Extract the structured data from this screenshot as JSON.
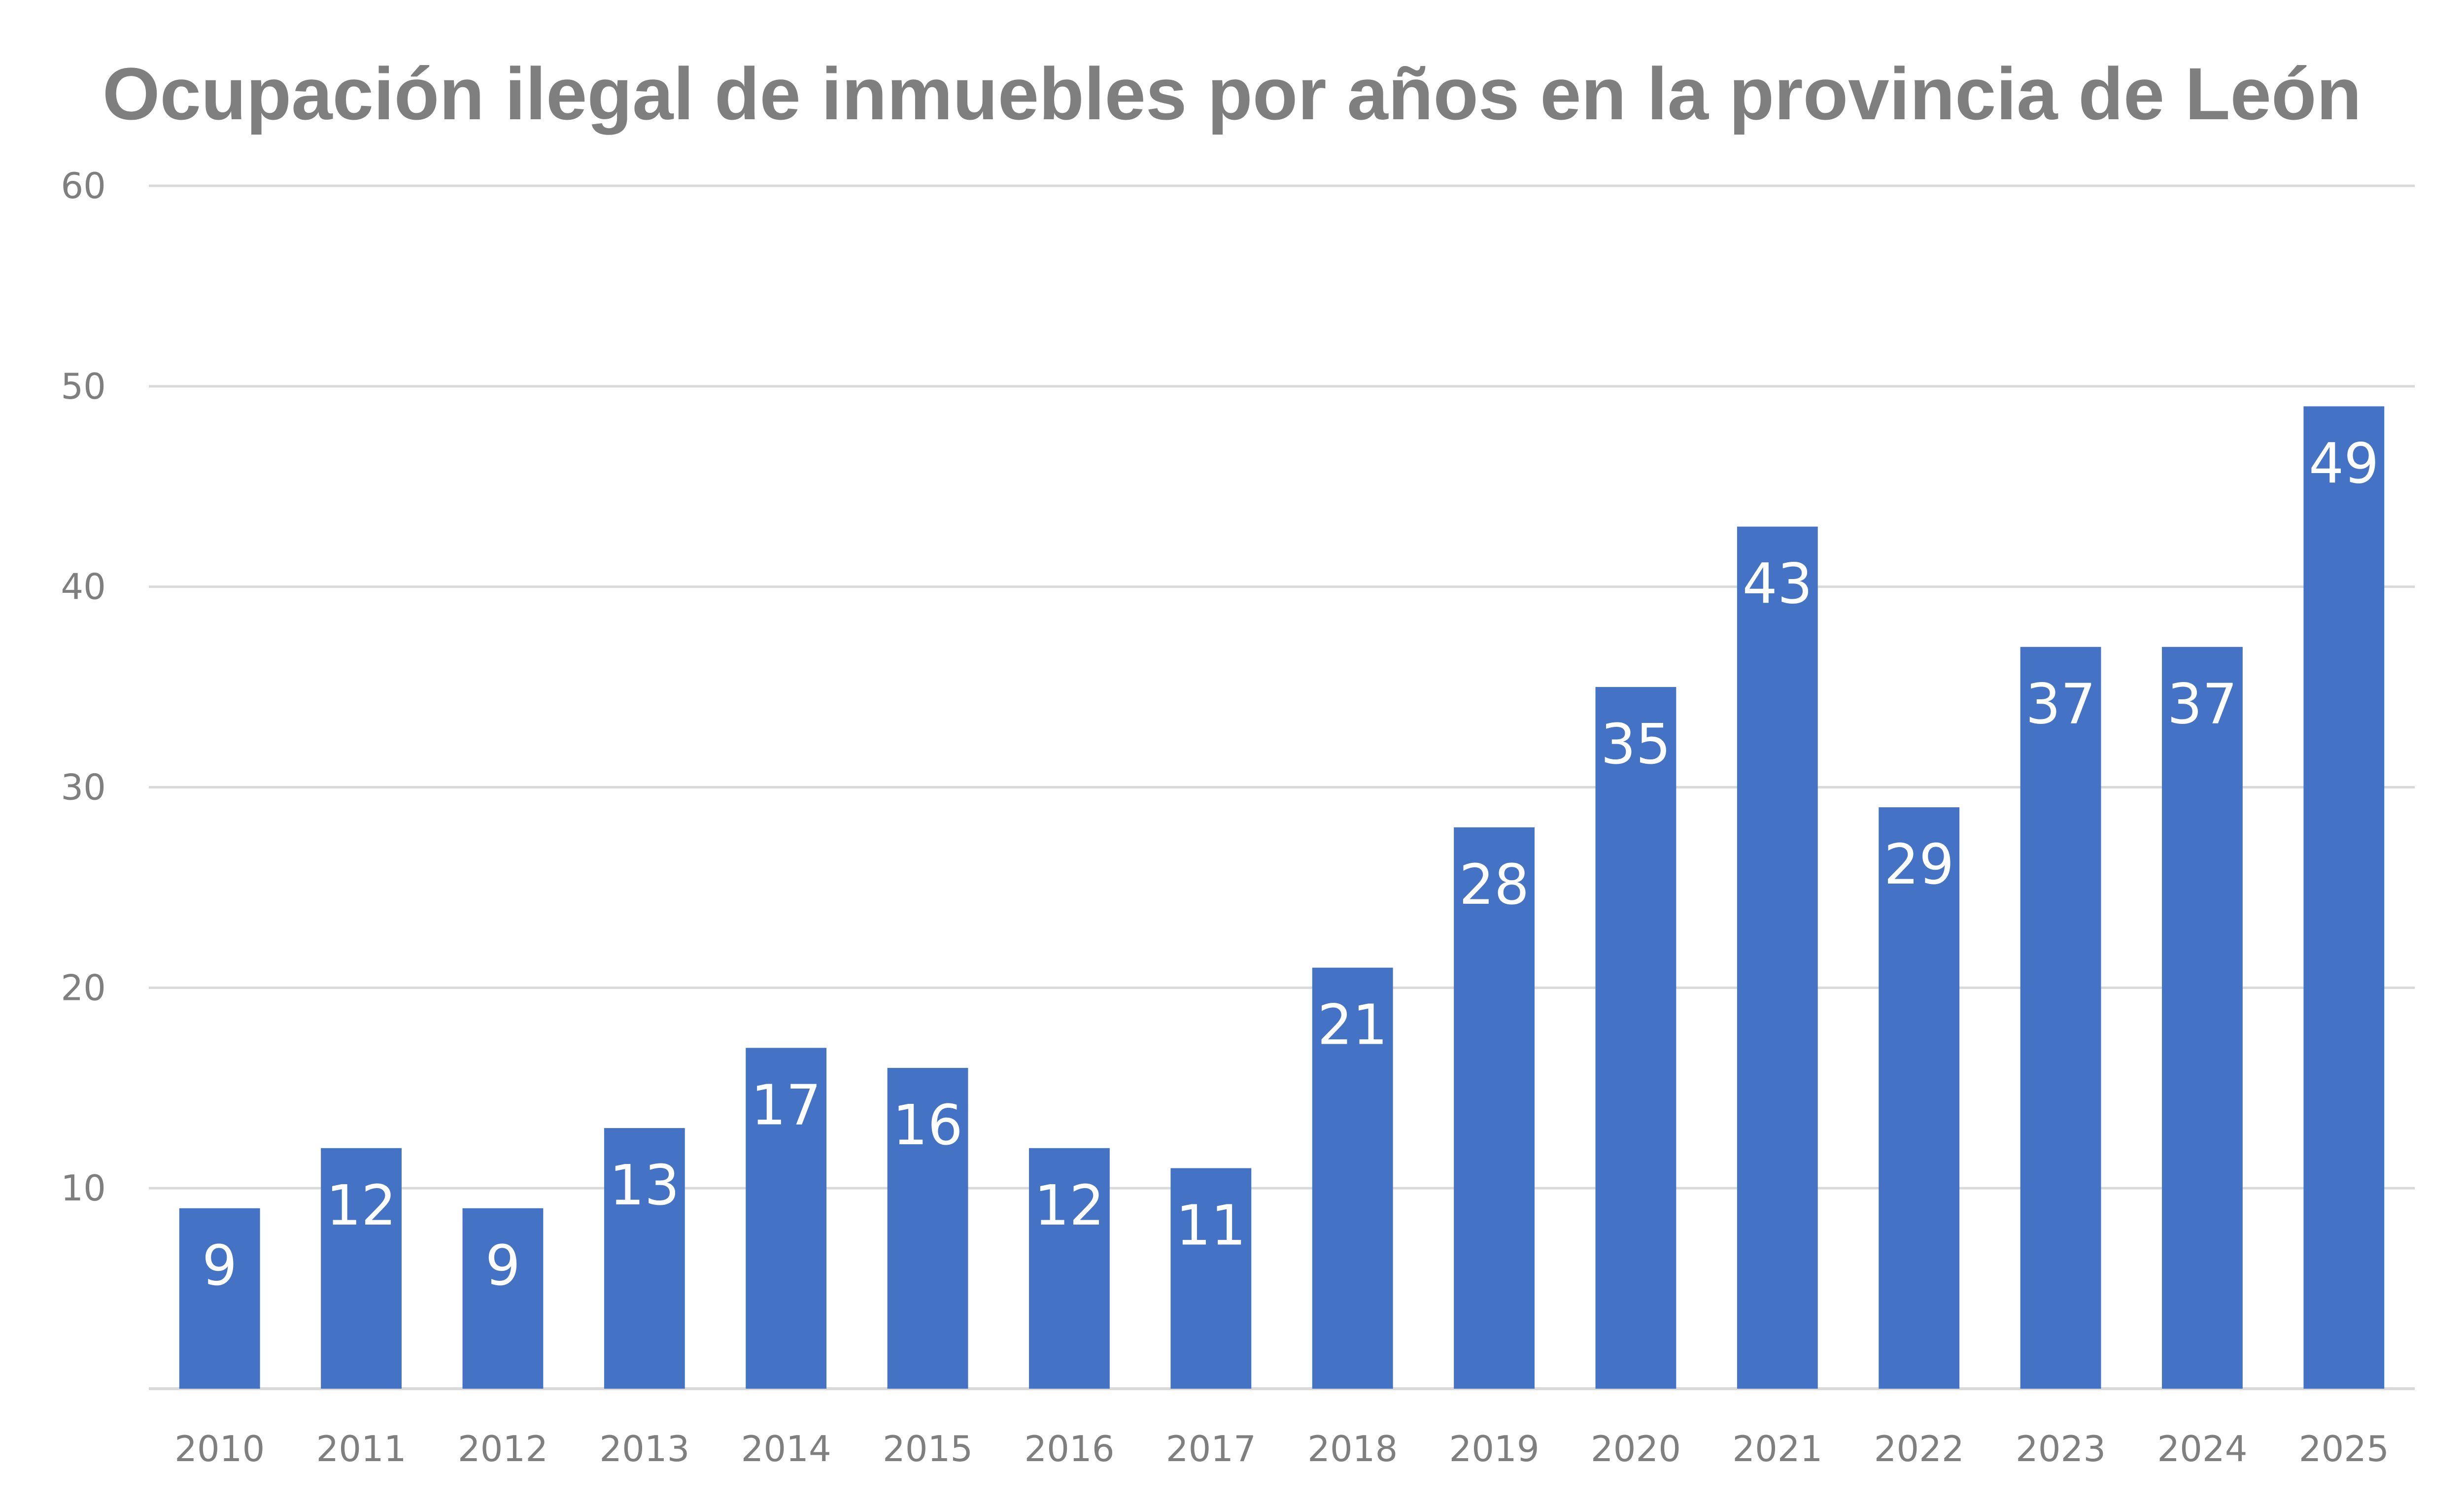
{
  "chart_data": {
    "type": "bar",
    "title": "Ocupación ilegal de inmuebles por años en la provincia de León",
    "xlabel": "",
    "ylabel": "",
    "categories": [
      "2010",
      "2011",
      "2012",
      "2013",
      "2014",
      "2015",
      "2016",
      "2017",
      "2018",
      "2019",
      "2020",
      "2021",
      "2022",
      "2023",
      "2024",
      "2025"
    ],
    "values": [
      9,
      12,
      9,
      13,
      17,
      16,
      12,
      11,
      21,
      28,
      35,
      43,
      29,
      37,
      37,
      49
    ],
    "ylim": [
      0,
      60
    ],
    "yticks": [
      "10",
      "20",
      "30",
      "40",
      "50",
      "60"
    ],
    "grid": true,
    "legend": "none",
    "bar_color": "#4472c4",
    "label_color": "#ffffff",
    "text_color": "#7f7f7f",
    "grid_color": "#d9d9d9"
  }
}
